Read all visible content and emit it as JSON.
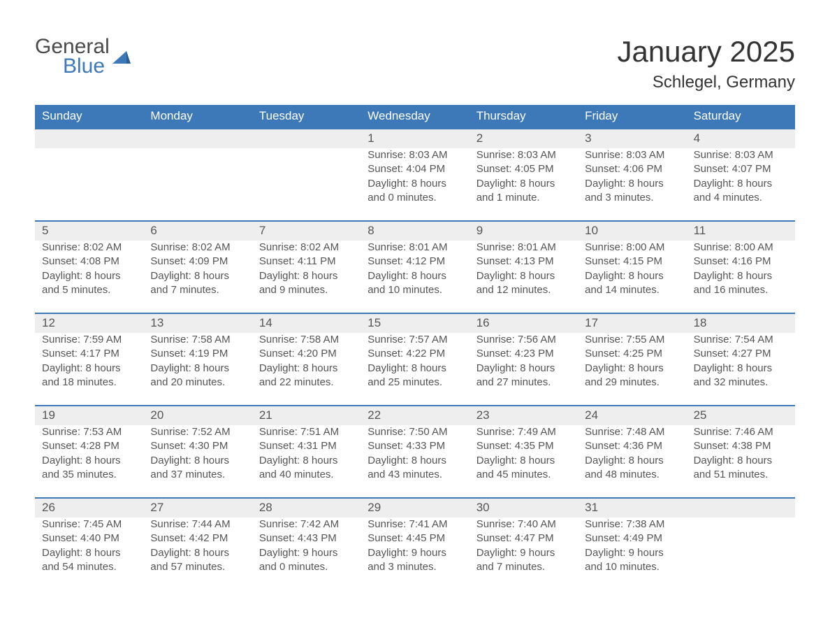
{
  "logo": {
    "word1": "General",
    "word2": "Blue"
  },
  "title": "January 2025",
  "location": "Schlegel, Germany",
  "colors": {
    "header_blue": "#3d79b8",
    "band_gray": "#eeeeee",
    "text_dark": "#333333",
    "text_mid": "#555555",
    "background": "#ffffff"
  },
  "calendar": {
    "type": "calendar-grid",
    "day_names": [
      "Sunday",
      "Monday",
      "Tuesday",
      "Wednesday",
      "Thursday",
      "Friday",
      "Saturday"
    ],
    "weeks": [
      [
        null,
        null,
        null,
        {
          "n": "1",
          "sunrise": "Sunrise: 8:03 AM",
          "sunset": "Sunset: 4:04 PM",
          "d1": "Daylight: 8 hours",
          "d2": "and 0 minutes."
        },
        {
          "n": "2",
          "sunrise": "Sunrise: 8:03 AM",
          "sunset": "Sunset: 4:05 PM",
          "d1": "Daylight: 8 hours",
          "d2": "and 1 minute."
        },
        {
          "n": "3",
          "sunrise": "Sunrise: 8:03 AM",
          "sunset": "Sunset: 4:06 PM",
          "d1": "Daylight: 8 hours",
          "d2": "and 3 minutes."
        },
        {
          "n": "4",
          "sunrise": "Sunrise: 8:03 AM",
          "sunset": "Sunset: 4:07 PM",
          "d1": "Daylight: 8 hours",
          "d2": "and 4 minutes."
        }
      ],
      [
        {
          "n": "5",
          "sunrise": "Sunrise: 8:02 AM",
          "sunset": "Sunset: 4:08 PM",
          "d1": "Daylight: 8 hours",
          "d2": "and 5 minutes."
        },
        {
          "n": "6",
          "sunrise": "Sunrise: 8:02 AM",
          "sunset": "Sunset: 4:09 PM",
          "d1": "Daylight: 8 hours",
          "d2": "and 7 minutes."
        },
        {
          "n": "7",
          "sunrise": "Sunrise: 8:02 AM",
          "sunset": "Sunset: 4:11 PM",
          "d1": "Daylight: 8 hours",
          "d2": "and 9 minutes."
        },
        {
          "n": "8",
          "sunrise": "Sunrise: 8:01 AM",
          "sunset": "Sunset: 4:12 PM",
          "d1": "Daylight: 8 hours",
          "d2": "and 10 minutes."
        },
        {
          "n": "9",
          "sunrise": "Sunrise: 8:01 AM",
          "sunset": "Sunset: 4:13 PM",
          "d1": "Daylight: 8 hours",
          "d2": "and 12 minutes."
        },
        {
          "n": "10",
          "sunrise": "Sunrise: 8:00 AM",
          "sunset": "Sunset: 4:15 PM",
          "d1": "Daylight: 8 hours",
          "d2": "and 14 minutes."
        },
        {
          "n": "11",
          "sunrise": "Sunrise: 8:00 AM",
          "sunset": "Sunset: 4:16 PM",
          "d1": "Daylight: 8 hours",
          "d2": "and 16 minutes."
        }
      ],
      [
        {
          "n": "12",
          "sunrise": "Sunrise: 7:59 AM",
          "sunset": "Sunset: 4:17 PM",
          "d1": "Daylight: 8 hours",
          "d2": "and 18 minutes."
        },
        {
          "n": "13",
          "sunrise": "Sunrise: 7:58 AM",
          "sunset": "Sunset: 4:19 PM",
          "d1": "Daylight: 8 hours",
          "d2": "and 20 minutes."
        },
        {
          "n": "14",
          "sunrise": "Sunrise: 7:58 AM",
          "sunset": "Sunset: 4:20 PM",
          "d1": "Daylight: 8 hours",
          "d2": "and 22 minutes."
        },
        {
          "n": "15",
          "sunrise": "Sunrise: 7:57 AM",
          "sunset": "Sunset: 4:22 PM",
          "d1": "Daylight: 8 hours",
          "d2": "and 25 minutes."
        },
        {
          "n": "16",
          "sunrise": "Sunrise: 7:56 AM",
          "sunset": "Sunset: 4:23 PM",
          "d1": "Daylight: 8 hours",
          "d2": "and 27 minutes."
        },
        {
          "n": "17",
          "sunrise": "Sunrise: 7:55 AM",
          "sunset": "Sunset: 4:25 PM",
          "d1": "Daylight: 8 hours",
          "d2": "and 29 minutes."
        },
        {
          "n": "18",
          "sunrise": "Sunrise: 7:54 AM",
          "sunset": "Sunset: 4:27 PM",
          "d1": "Daylight: 8 hours",
          "d2": "and 32 minutes."
        }
      ],
      [
        {
          "n": "19",
          "sunrise": "Sunrise: 7:53 AM",
          "sunset": "Sunset: 4:28 PM",
          "d1": "Daylight: 8 hours",
          "d2": "and 35 minutes."
        },
        {
          "n": "20",
          "sunrise": "Sunrise: 7:52 AM",
          "sunset": "Sunset: 4:30 PM",
          "d1": "Daylight: 8 hours",
          "d2": "and 37 minutes."
        },
        {
          "n": "21",
          "sunrise": "Sunrise: 7:51 AM",
          "sunset": "Sunset: 4:31 PM",
          "d1": "Daylight: 8 hours",
          "d2": "and 40 minutes."
        },
        {
          "n": "22",
          "sunrise": "Sunrise: 7:50 AM",
          "sunset": "Sunset: 4:33 PM",
          "d1": "Daylight: 8 hours",
          "d2": "and 43 minutes."
        },
        {
          "n": "23",
          "sunrise": "Sunrise: 7:49 AM",
          "sunset": "Sunset: 4:35 PM",
          "d1": "Daylight: 8 hours",
          "d2": "and 45 minutes."
        },
        {
          "n": "24",
          "sunrise": "Sunrise: 7:48 AM",
          "sunset": "Sunset: 4:36 PM",
          "d1": "Daylight: 8 hours",
          "d2": "and 48 minutes."
        },
        {
          "n": "25",
          "sunrise": "Sunrise: 7:46 AM",
          "sunset": "Sunset: 4:38 PM",
          "d1": "Daylight: 8 hours",
          "d2": "and 51 minutes."
        }
      ],
      [
        {
          "n": "26",
          "sunrise": "Sunrise: 7:45 AM",
          "sunset": "Sunset: 4:40 PM",
          "d1": "Daylight: 8 hours",
          "d2": "and 54 minutes."
        },
        {
          "n": "27",
          "sunrise": "Sunrise: 7:44 AM",
          "sunset": "Sunset: 4:42 PM",
          "d1": "Daylight: 8 hours",
          "d2": "and 57 minutes."
        },
        {
          "n": "28",
          "sunrise": "Sunrise: 7:42 AM",
          "sunset": "Sunset: 4:43 PM",
          "d1": "Daylight: 9 hours",
          "d2": "and 0 minutes."
        },
        {
          "n": "29",
          "sunrise": "Sunrise: 7:41 AM",
          "sunset": "Sunset: 4:45 PM",
          "d1": "Daylight: 9 hours",
          "d2": "and 3 minutes."
        },
        {
          "n": "30",
          "sunrise": "Sunrise: 7:40 AM",
          "sunset": "Sunset: 4:47 PM",
          "d1": "Daylight: 9 hours",
          "d2": "and 7 minutes."
        },
        {
          "n": "31",
          "sunrise": "Sunrise: 7:38 AM",
          "sunset": "Sunset: 4:49 PM",
          "d1": "Daylight: 9 hours",
          "d2": "and 10 minutes."
        },
        null
      ]
    ]
  }
}
